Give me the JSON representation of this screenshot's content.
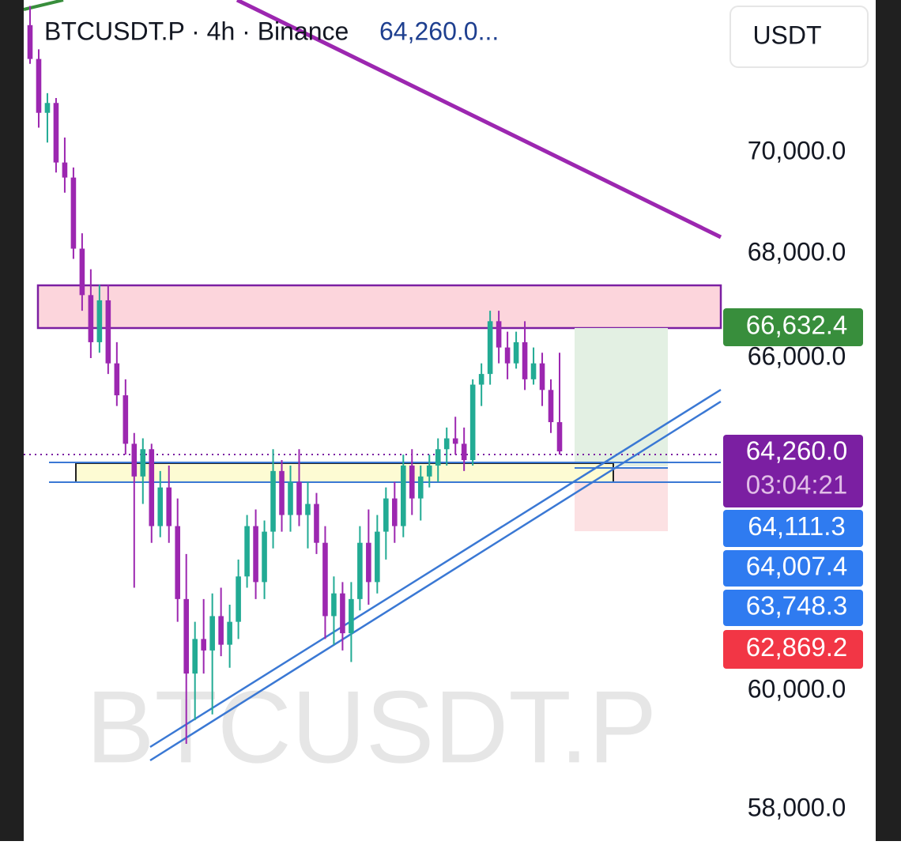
{
  "chart_data": {
    "type": "candlestick",
    "title": "BTCUSDT.P · 4h · Binance",
    "last_price_header": "64,260.0...",
    "watermark": "BTCUSDT.P",
    "currency_button": "USDT",
    "log_scale": true,
    "up_color": "#22ab94",
    "down_color": "#9c27b0",
    "ylim": [
      57477,
      73124
    ],
    "yticks": [
      {
        "value": 58000,
        "label": "58,000.0"
      },
      {
        "value": 60000,
        "label": "60,000.0"
      },
      {
        "value": 66000,
        "label": "66,000.0"
      },
      {
        "value": 68000,
        "label": "68,000.0"
      },
      {
        "value": 70000,
        "label": "70,000.0"
      }
    ],
    "ohlc": [
      [
        72600,
        73000,
        71800,
        71900
      ],
      [
        71900,
        72100,
        70500,
        70800
      ],
      [
        70800,
        71200,
        70200,
        71000
      ],
      [
        71000,
        71100,
        69600,
        69800
      ],
      [
        69800,
        70300,
        69200,
        69500
      ],
      [
        69500,
        69700,
        67900,
        68100
      ],
      [
        68100,
        68400,
        66900,
        67200
      ],
      [
        67200,
        67700,
        66000,
        66300
      ],
      [
        66300,
        67400,
        66100,
        67100
      ],
      [
        67100,
        67400,
        65700,
        65900
      ],
      [
        65900,
        66300,
        65100,
        65300
      ],
      [
        65300,
        65600,
        64200,
        64400
      ],
      [
        64400,
        64600,
        61800,
        63800
      ],
      [
        63800,
        64500,
        63300,
        64300
      ],
      [
        64300,
        64400,
        62600,
        62900
      ],
      [
        62900,
        63900,
        62700,
        63600
      ],
      [
        63600,
        64000,
        62600,
        62900
      ],
      [
        62900,
        63400,
        61200,
        61600
      ],
      [
        61600,
        62400,
        59100,
        60300
      ],
      [
        60300,
        61200,
        59500,
        60900
      ],
      [
        60900,
        61600,
        60300,
        60700
      ],
      [
        60700,
        61700,
        59600,
        61300
      ],
      [
        61300,
        61800,
        60600,
        60800
      ],
      [
        60800,
        61500,
        60400,
        61200
      ],
      [
        61200,
        62300,
        60900,
        62000
      ],
      [
        62000,
        63100,
        61800,
        62900
      ],
      [
        62900,
        63200,
        61600,
        61900
      ],
      [
        61900,
        63000,
        61600,
        62800
      ],
      [
        62800,
        64300,
        62500,
        63900
      ],
      [
        63900,
        64100,
        62800,
        63100
      ],
      [
        63100,
        64000,
        62800,
        63700
      ],
      [
        63700,
        64300,
        62900,
        63100
      ],
      [
        63100,
        63700,
        62500,
        63300
      ],
      [
        63300,
        63500,
        62400,
        62600
      ],
      [
        62600,
        62900,
        60900,
        61300
      ],
      [
        61300,
        62000,
        60800,
        61700
      ],
      [
        61700,
        61900,
        60700,
        61000
      ],
      [
        61000,
        61900,
        60500,
        61600
      ],
      [
        61600,
        62900,
        61400,
        62600
      ],
      [
        62600,
        63200,
        61500,
        61900
      ],
      [
        61900,
        63100,
        61700,
        62800
      ],
      [
        62800,
        63600,
        62300,
        63400
      ],
      [
        63400,
        63700,
        62600,
        62900
      ],
      [
        62900,
        64200,
        62700,
        64000
      ],
      [
        64000,
        64300,
        63100,
        63400
      ],
      [
        63400,
        64000,
        63000,
        63800
      ],
      [
        63800,
        64200,
        63600,
        64000
      ],
      [
        64000,
        64500,
        63700,
        64300
      ],
      [
        64300,
        64700,
        64000,
        64500
      ],
      [
        64500,
        64900,
        64200,
        64400
      ],
      [
        64400,
        64700,
        63900,
        64100
      ],
      [
        64100,
        65600,
        64000,
        65500
      ],
      [
        65500,
        65900,
        65100,
        65700
      ],
      [
        65700,
        66900,
        65500,
        66700
      ],
      [
        66700,
        66900,
        65900,
        66200
      ],
      [
        66200,
        66500,
        65600,
        65900
      ],
      [
        65900,
        66500,
        65800,
        66300
      ],
      [
        66300,
        66700,
        65400,
        65600
      ],
      [
        65600,
        66200,
        65500,
        65900
      ],
      [
        65900,
        66100,
        65100,
        65400
      ],
      [
        65400,
        65600,
        64600,
        64800
      ],
      [
        64800,
        66100,
        64200,
        64260
      ]
    ],
    "price_labels": [
      {
        "label": "66,632.4",
        "color": "#388e3c"
      },
      {
        "label": "64,260.0",
        "sub": "03:04:21",
        "color": "#7b1fa2"
      },
      {
        "label": "64,111.3",
        "color": "#2f7bf0"
      },
      {
        "label": "64,007.4",
        "color": "#2f7bf0"
      },
      {
        "label": "63,748.3",
        "color": "#2f7bf0"
      },
      {
        "label": "62,869.2",
        "color": "#f23645"
      }
    ]
  }
}
